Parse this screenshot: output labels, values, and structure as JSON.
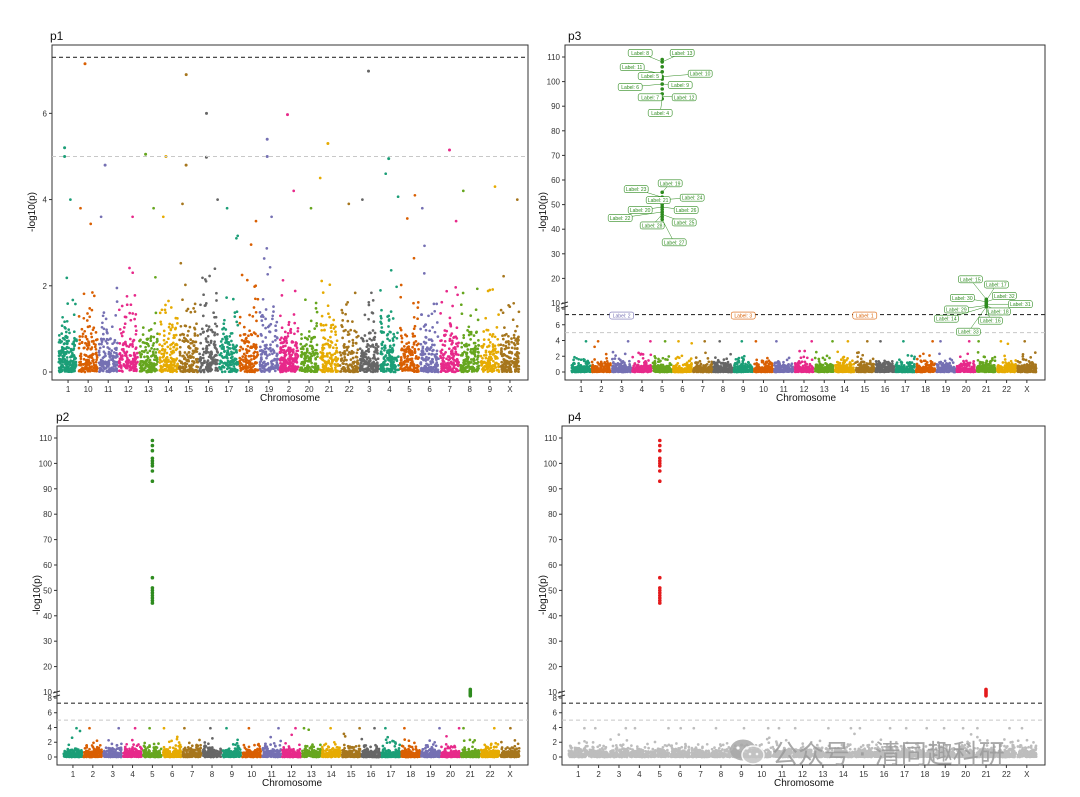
{
  "chart_data": [
    {
      "id": "p1",
      "type": "scatter",
      "title": "p1",
      "xlabel": "Chromosome",
      "ylabel": "-log10(p)",
      "categories": [
        "1",
        "10",
        "11",
        "12",
        "13",
        "14",
        "15",
        "16",
        "17",
        "18",
        "19",
        "2",
        "20",
        "21",
        "22",
        "3",
        "4",
        "5",
        "6",
        "7",
        "8",
        "9",
        "X"
      ],
      "y_ticks": [
        0,
        2,
        4,
        6
      ],
      "ylim": [
        0,
        7.4
      ],
      "genome_wide_line": 7.3,
      "suggestive_line": 5.0,
      "points_per_chromosome": [
        200,
        150,
        150,
        140,
        150,
        150,
        150,
        150,
        150,
        140,
        140,
        200,
        140,
        140,
        130,
        170,
        160,
        150,
        140,
        150,
        140,
        130,
        160
      ],
      "max_base": [
        4.0,
        3.8,
        3.6,
        3.6,
        3.8,
        3.6,
        3.9,
        4.0,
        3.8,
        3.5,
        3.6,
        4.2,
        3.8,
        4.5,
        3.9,
        4.0,
        4.6,
        4.1,
        3.8,
        3.5,
        4.2,
        4.3,
        4.0
      ],
      "top_hits": [
        {
          "chr": "1",
          "y": 5.0
        },
        {
          "chr": "1",
          "y": 5.2
        },
        {
          "chr": "10",
          "y": 7.15
        },
        {
          "chr": "11",
          "y": 4.8
        },
        {
          "chr": "13",
          "y": 5.05
        },
        {
          "chr": "14",
          "y": 5.0
        },
        {
          "chr": "15",
          "y": 6.9
        },
        {
          "chr": "15",
          "y": 4.8
        },
        {
          "chr": "16",
          "y": 6.0
        },
        {
          "chr": "16",
          "y": 4.98
        },
        {
          "chr": "19",
          "y": 5.4
        },
        {
          "chr": "19",
          "y": 5.0
        },
        {
          "chr": "2",
          "y": 5.97
        },
        {
          "chr": "21",
          "y": 5.3
        },
        {
          "chr": "3",
          "y": 6.98
        },
        {
          "chr": "4",
          "y": 4.95
        },
        {
          "chr": "7",
          "y": 5.15
        }
      ]
    },
    {
      "id": "p3",
      "type": "scatter",
      "title": "p3",
      "xlabel": "Chromosome",
      "ylabel": "-log10(p)",
      "categories": [
        "1",
        "2",
        "3",
        "4",
        "5",
        "6",
        "7",
        "8",
        "9",
        "10",
        "11",
        "12",
        "13",
        "14",
        "15",
        "16",
        "17",
        "18",
        "19",
        "20",
        "21",
        "22",
        "X"
      ],
      "y_ticks_low": [
        0,
        2,
        4,
        6,
        8
      ],
      "y_ticks_high": [
        10,
        20,
        30,
        40,
        50,
        60,
        70,
        80,
        90,
        100,
        110
      ],
      "y_break": 8,
      "genome_wide_line": 7.3,
      "suggestive_line": 5.0,
      "highlight_color": "#2E8B1F",
      "signal_clusters": [
        {
          "chr": "5",
          "y": [
            93,
            95,
            97,
            99,
            101,
            102,
            104,
            106,
            108,
            109
          ]
        },
        {
          "chr": "5",
          "y": [
            44,
            45,
            46,
            47,
            48,
            49,
            50,
            51,
            52,
            53,
            55
          ]
        },
        {
          "chr": "21",
          "y": [
            8.5,
            9,
            9.5,
            10,
            10.5,
            11,
            11.5
          ]
        }
      ],
      "labels": [
        {
          "text": "Label: 8",
          "chr": "5",
          "y": 108,
          "dx": -22,
          "dy": -9
        },
        {
          "text": "Label: 13",
          "chr": "5",
          "y": 108,
          "dx": 20,
          "dy": -9
        },
        {
          "text": "Label: 11",
          "chr": "5",
          "y": 103,
          "dx": -30,
          "dy": -7
        },
        {
          "text": "Label: 10",
          "chr": "5",
          "y": 102,
          "dx": 38,
          "dy": -3
        },
        {
          "text": "Label: 5",
          "chr": "5",
          "y": 101,
          "dx": -12,
          "dy": -3
        },
        {
          "text": "Label: 6",
          "chr": "5",
          "y": 99,
          "dx": -32,
          "dy": 3
        },
        {
          "text": "Label: 9",
          "chr": "5",
          "y": 99,
          "dx": 18,
          "dy": 1
        },
        {
          "text": "Label: 7",
          "chr": "5",
          "y": 94,
          "dx": -12,
          "dy": 1
        },
        {
          "text": "Label: 12",
          "chr": "5",
          "y": 94,
          "dx": 22,
          "dy": 1
        },
        {
          "text": "Label: 4",
          "chr": "5",
          "y": 93,
          "dx": -2,
          "dy": 14
        },
        {
          "text": "Label: 19",
          "chr": "5",
          "y": 55,
          "dx": 8,
          "dy": -9
        },
        {
          "text": "Label: 23",
          "chr": "5",
          "y": 53,
          "dx": -26,
          "dy": -8
        },
        {
          "text": "Label: 24",
          "chr": "5",
          "y": 52,
          "dx": 30,
          "dy": -2
        },
        {
          "text": "Label: 21",
          "chr": "5",
          "y": 51,
          "dx": -4,
          "dy": -2
        },
        {
          "text": "Label: 20",
          "chr": "5",
          "y": 49,
          "dx": -22,
          "dy": 3
        },
        {
          "text": "Label: 26",
          "chr": "5",
          "y": 49,
          "dx": 24,
          "dy": 3
        },
        {
          "text": "Label: 22",
          "chr": "5",
          "y": 47,
          "dx": -42,
          "dy": 6
        },
        {
          "text": "Label: 25",
          "chr": "5",
          "y": 46,
          "dx": 22,
          "dy": 8
        },
        {
          "text": "Label: 28",
          "chr": "5",
          "y": 46,
          "dx": -10,
          "dy": 11
        },
        {
          "text": "Label: 27",
          "chr": "5",
          "y": 44,
          "dx": 12,
          "dy": 23
        },
        {
          "text": "Label: 15",
          "chr": "21",
          "y": 11.5,
          "dx": -16,
          "dy": -20
        },
        {
          "text": "Label: 17",
          "chr": "21",
          "y": 11,
          "dx": 10,
          "dy": -16
        },
        {
          "text": "Label: 32",
          "chr": "21",
          "y": 10.5,
          "dx": 18,
          "dy": -6
        },
        {
          "text": "Label: 30",
          "chr": "21",
          "y": 10.5,
          "dx": -24,
          "dy": -4
        },
        {
          "text": "Label: 31",
          "chr": "21",
          "y": 9.5,
          "dx": 34,
          "dy": 0
        },
        {
          "text": "Label: 29",
          "chr": "21",
          "y": 9,
          "dx": -30,
          "dy": 4
        },
        {
          "text": "Label: 18",
          "chr": "21",
          "y": 9,
          "dx": 12,
          "dy": 6
        },
        {
          "text": "Label: 14",
          "chr": "21",
          "y": 8.5,
          "dx": -40,
          "dy": 12
        },
        {
          "text": "Label: 16",
          "chr": "21",
          "y": 8.5,
          "dx": 4,
          "dy": 14
        },
        {
          "text": "Label: 33",
          "chr": "21",
          "y": 8.5,
          "dx": -18,
          "dy": 25
        },
        {
          "text": "Label: 2",
          "chr": "3",
          "y": 7.3,
          "dx": 0,
          "dy": 1,
          "color": "#7570B3"
        },
        {
          "text": "Label: 3",
          "chr": "9",
          "y": 7.3,
          "dx": 0,
          "dy": 1,
          "color": "#D95F02"
        },
        {
          "text": "Label: 1",
          "chr": "15",
          "y": 7.3,
          "dx": 0,
          "dy": 1,
          "color": "#D95F02"
        }
      ]
    },
    {
      "id": "p2",
      "type": "scatter",
      "title": "p2",
      "xlabel": "Chromosome",
      "ylabel": "-log10(p)",
      "categories": [
        "1",
        "2",
        "3",
        "4",
        "5",
        "6",
        "7",
        "8",
        "9",
        "10",
        "11",
        "12",
        "13",
        "14",
        "15",
        "16",
        "17",
        "18",
        "19",
        "20",
        "21",
        "22",
        "X"
      ],
      "y_ticks_low": [
        0,
        2,
        4,
        6,
        8
      ],
      "y_ticks_high": [
        10,
        20,
        30,
        40,
        50,
        60,
        70,
        80,
        90,
        100,
        110
      ],
      "y_break": 8,
      "genome_wide_line": 7.3,
      "suggestive_line": 5.0,
      "highlight_color": "#2E8B1F",
      "signal_clusters": [
        {
          "chr": "5",
          "y": [
            93,
            97,
            99,
            100,
            101,
            102,
            105,
            107,
            109
          ]
        },
        {
          "chr": "5",
          "y": [
            45,
            46,
            47,
            48,
            49,
            50,
            51,
            55
          ]
        },
        {
          "chr": "21",
          "y": [
            8.5,
            9,
            9.5,
            10,
            10.5,
            11
          ]
        }
      ]
    },
    {
      "id": "p4",
      "type": "scatter",
      "title": "p4",
      "xlabel": "Chromosome",
      "ylabel": "-log10(p)",
      "categories": [
        "1",
        "2",
        "3",
        "4",
        "5",
        "6",
        "7",
        "8",
        "9",
        "10",
        "11",
        "12",
        "13",
        "14",
        "15",
        "16",
        "17",
        "18",
        "19",
        "20",
        "21",
        "22",
        "X"
      ],
      "y_ticks_low": [
        0,
        2,
        4,
        6,
        8
      ],
      "y_ticks_high": [
        10,
        20,
        30,
        40,
        50,
        60,
        70,
        80,
        90,
        100,
        110
      ],
      "y_break": 8,
      "genome_wide_line": 7.3,
      "suggestive_line": 5.0,
      "base_color": "#BDBDBD",
      "highlight_color": "#E41A1C",
      "signal_clusters": [
        {
          "chr": "5",
          "y": [
            93,
            97,
            99,
            100,
            101,
            102,
            105,
            107,
            109
          ]
        },
        {
          "chr": "5",
          "y": [
            45,
            46,
            47,
            48,
            49,
            50,
            51,
            55
          ]
        },
        {
          "chr": "21",
          "y": [
            8.5,
            9,
            9.5,
            10,
            10.5,
            11
          ]
        }
      ]
    }
  ],
  "palette": [
    "#1B9E77",
    "#D95F02",
    "#7570B3",
    "#E7298A",
    "#66A61E",
    "#E6AB02",
    "#A6761D",
    "#666666"
  ],
  "watermark": {
    "text": "公众号 · 清同趣科研",
    "icon": "wechat-logo-icon"
  }
}
